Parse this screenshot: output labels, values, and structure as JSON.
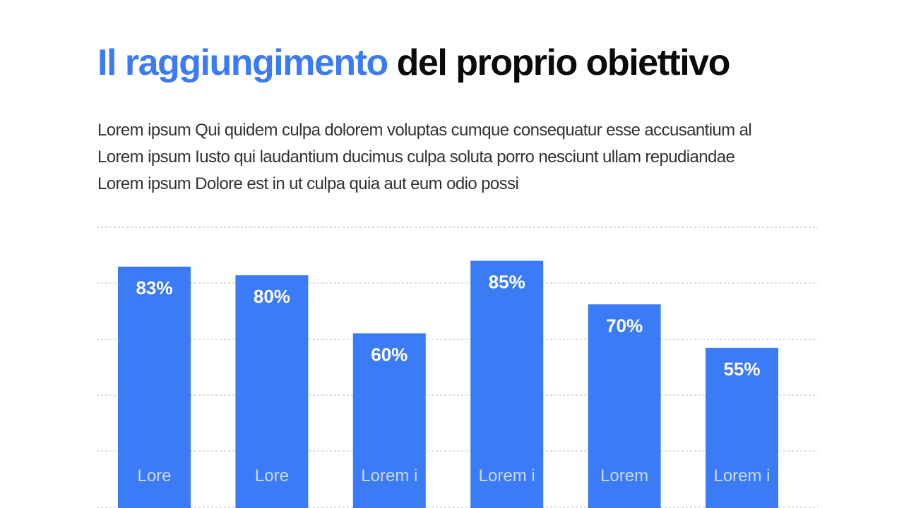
{
  "slide": {
    "title_accent": "Il raggiungimento",
    "title_rest": "del proprio obiettivo",
    "subtitle_lines": [
      "Lorem ipsum Qui quidem culpa dolorem voluptas cumque consequatur esse accusantium al",
      "Lorem ipsum Iusto qui laudantium ducimus culpa soluta porro nesciunt ullam repudiandae",
      "Lorem ipsum Dolore est in ut culpa quia aut eum odio possi"
    ]
  },
  "colors": {
    "accent": "#3b7bf6",
    "bar": "#3b7bf6",
    "grid": "#b9bcc8"
  },
  "chart_data": {
    "type": "bar",
    "categories": [
      "Lore",
      "Lore",
      "Lorem i",
      "Lorem i",
      "Lorem",
      "Lorem i"
    ],
    "values": [
      83,
      80,
      60,
      85,
      70,
      55
    ],
    "value_labels": [
      "83%",
      "80%",
      "60%",
      "85%",
      "70%",
      "55%"
    ],
    "ylim": [
      0,
      100
    ],
    "grid": true,
    "grid_style": "dashed",
    "legend": "none"
  }
}
